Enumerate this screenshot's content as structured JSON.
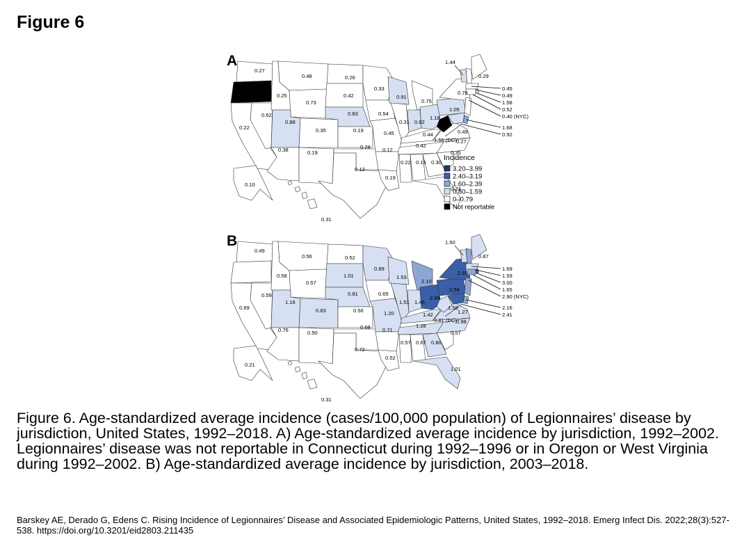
{
  "figure_heading": "Figure 6",
  "colors": {
    "bin_3_20_3_99": "#22396b",
    "bin_2_40_3_19": "#3a5fa8",
    "bin_1_60_2_39": "#8ea6d6",
    "bin_0_80_1_59": "#d6e0f2",
    "bin_0_0_79": "#ffffff",
    "not_reportable": "#000000",
    "outline": "#333333"
  },
  "legend": {
    "title": "Incidence",
    "items": [
      {
        "label": "3.20–3.99",
        "color_key": "bin_3_20_3_99"
      },
      {
        "label": "2.40–3.19",
        "color_key": "bin_2_40_3_19"
      },
      {
        "label": "1.60–2.39",
        "color_key": "bin_1_60_2_39"
      },
      {
        "label": "0.80–1.59",
        "color_key": "bin_0_80_1_59"
      },
      {
        "label": "0–0.79",
        "color_key": "bin_0_0_79"
      },
      {
        "label": "Not reportable",
        "color_key": "not_reportable"
      }
    ]
  },
  "panels": [
    {
      "letter": "A",
      "values": {
        "WA": "0.27",
        "OR": "Not reportable",
        "CA": "0.22",
        "NV": "0.62",
        "ID": "0.25",
        "MT": "0.48",
        "WY": "0.73",
        "UT": "0.88",
        "CO": "0.35",
        "AZ": "0.38",
        "NM": "0.19",
        "ND": "0.26",
        "SD": "0.42",
        "NE": "0.83",
        "KS": "0.19",
        "OK": "0.28",
        "TX": "0.12",
        "MN": "0.33",
        "IA": "0.54",
        "MO": "0.45",
        "AR": "0.12",
        "LA": "0.19",
        "WI": "0.91",
        "IL": "0.31",
        "MI": "0.75",
        "IN": "0.82",
        "OH": "1.18",
        "KY": "0.44",
        "TN": "0.42",
        "MS": "0.22",
        "AL": "0.15",
        "GA": "0.30",
        "FL": "0.33",
        "SC": "0.35",
        "NC": "0.27",
        "VA": "0.49",
        "WV": "Not reportable",
        "PA": "1.05",
        "NY": "0.78",
        "VT": "1.44",
        "ME": "0.29",
        "NH": "0.45",
        "MA": "0.49",
        "RI": "1.58",
        "CT": "0.52",
        "NJ": "0.35",
        "NYC": "0.40",
        "DE": "1.68",
        "MD": "0.92",
        "DC": "1.56",
        "AK": "0.10",
        "HI": "0.31"
      },
      "callouts": {
        "NH": "0.45",
        "MA": "0.49",
        "RI": "1.58",
        "CT": "0.52",
        "NYC": "0.40 (NYC)",
        "DE": "1.68",
        "MD": "0.92",
        "DC": "1.56 (DC)",
        "VT": "1.44"
      }
    },
    {
      "letter": "B",
      "values": {
        "WA": "0.49",
        "OR": "0.54",
        "CA": "0.69",
        "NV": "0.59",
        "ID": "0.58",
        "MT": "0.56",
        "WY": "0.57",
        "UT": "1.16",
        "CO": "0.83",
        "AZ": "0.76",
        "NM": "0.50",
        "ND": "0.52",
        "SD": "1.01",
        "NE": "0.81",
        "KS": "0.56",
        "OK": "0.68",
        "TX": "0.72",
        "MN": "0.89",
        "IA": "0.65",
        "MO": "1.20",
        "AR": "0.71",
        "LA": "0.52",
        "WI": "1.53",
        "IL": "1.51",
        "MI": "2.10",
        "IN": "1.45",
        "OH": "2.99",
        "KY": "1.42",
        "TN": "1.28",
        "MS": "0.57",
        "AL": "0.67",
        "GA": "0.80",
        "FL": "1.01",
        "SC": "0.57",
        "NC": "0.98",
        "VA": "1.27",
        "WV": "1.58",
        "PA": "2.58",
        "NY": "2.93",
        "VT": "1.50",
        "ME": "0.87",
        "NH": "1.69",
        "MA": "1.59",
        "RI": "3.00",
        "CT": "1.65",
        "NJ": "1.90",
        "NYC": "2.90",
        "DE": "2.16",
        "MD": "2.41",
        "DC": "3.81",
        "AK": "0.21",
        "HI": "0.31"
      },
      "callouts": {
        "NH": "1.69",
        "MA": "1.59",
        "RI": "3.00",
        "CT": "1.65",
        "NYC": "2.90 (NYC)",
        "DE": "2.16",
        "MD": "2.41",
        "DC": "3.81 (DC)",
        "VT": "1.50"
      }
    }
  ],
  "caption": "Figure 6. Age-standardized average incidence (cases/100,000 population) of Legionnaires’ disease by jurisdiction, United States, 1992–2018. A) Age-standardized average incidence by jurisdiction, 1992–2002. Legionnaires’ disease was not reportable in Connecticut during 1992–1996 or in Oregon or West Virginia during 1992–2002. B) Age-standardized average incidence by jurisdiction, 2003–2018.",
  "citation": "Barskey AE, Derado G, Edens C. Rising Incidence of Legionnaires’ Disease and Associated Epidemiologic Patterns, United States, 1992–2018. Emerg Infect Dis. 2022;28(3):527-538. https://doi.org/10.3201/eid2803.211435"
}
